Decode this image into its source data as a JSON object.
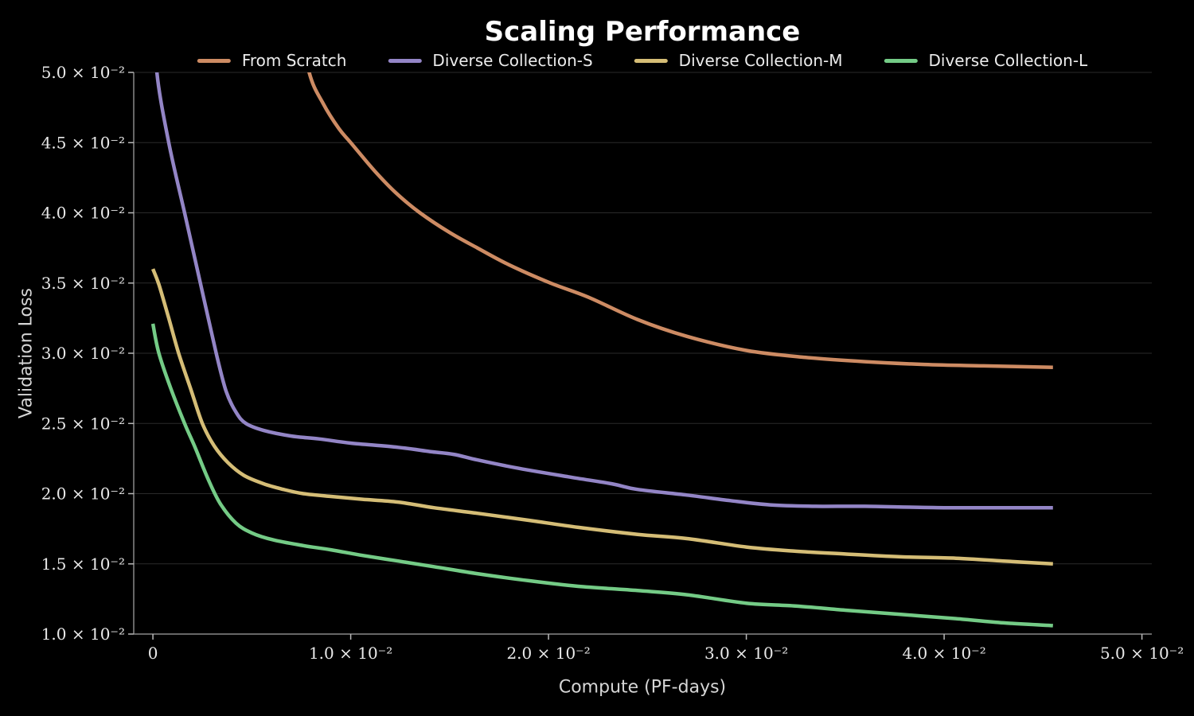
{
  "chart_data": {
    "type": "line",
    "title": "Scaling Performance",
    "xlabel": "Compute (PF-days)",
    "ylabel": "Validation Loss",
    "xlim": [
      -0.00097,
      0.0505
    ],
    "ylim": [
      0.01,
      0.05
    ],
    "grid": "horizontal",
    "legend_position": "top-center",
    "colors": {
      "background": "#000000",
      "gridline": "#2a2a2a",
      "spine": "#878787",
      "tick": "#b8b8b8",
      "tick_label": "#e9e9e9",
      "axis_label": "#d6d6d6",
      "title": "#ffffff",
      "legend_text": "#ececec"
    },
    "xticks": [
      {
        "v": 0,
        "label": "0"
      },
      {
        "v": 0.01,
        "label": "1.0 × 10⁻²"
      },
      {
        "v": 0.02,
        "label": "2.0 × 10⁻²"
      },
      {
        "v": 0.03,
        "label": "3.0 × 10⁻²"
      },
      {
        "v": 0.04,
        "label": "4.0 × 10⁻²"
      },
      {
        "v": 0.05,
        "label": "5.0 × 10⁻²"
      }
    ],
    "yticks": [
      {
        "v": 0.05,
        "label": "5.0 × 10⁻²"
      },
      {
        "v": 0.045,
        "label": "4.5 × 10⁻²"
      },
      {
        "v": 0.04,
        "label": "4.0 × 10⁻²"
      },
      {
        "v": 0.035,
        "label": "3.5 × 10⁻²"
      },
      {
        "v": 0.03,
        "label": "3.0 × 10⁻²"
      },
      {
        "v": 0.025,
        "label": "2.5 × 10⁻²"
      },
      {
        "v": 0.02,
        "label": "2.0 × 10⁻²"
      },
      {
        "v": 0.015,
        "label": "1.5 × 10⁻²"
      },
      {
        "v": 0.01,
        "label": "1.0 × 10⁻²"
      }
    ],
    "line_width": 4.5,
    "series": [
      {
        "name": "From Scratch",
        "color": "#cd8b63",
        "points": [
          [
            0.0072,
            0.055
          ],
          [
            0.0079,
            0.05
          ],
          [
            0.0086,
            0.0478
          ],
          [
            0.0094,
            0.046
          ],
          [
            0.01,
            0.045
          ],
          [
            0.0112,
            0.043
          ],
          [
            0.0123,
            0.0414
          ],
          [
            0.0135,
            0.04
          ],
          [
            0.015,
            0.0386
          ],
          [
            0.0164,
            0.0375
          ],
          [
            0.018,
            0.0363
          ],
          [
            0.0201,
            0.035
          ],
          [
            0.022,
            0.034
          ],
          [
            0.0245,
            0.0324
          ],
          [
            0.027,
            0.0312
          ],
          [
            0.03,
            0.0302
          ],
          [
            0.033,
            0.0297
          ],
          [
            0.036,
            0.0294
          ],
          [
            0.039,
            0.0292
          ],
          [
            0.042,
            0.0291
          ],
          [
            0.0455,
            0.029
          ]
        ]
      },
      {
        "name": "Diverse Collection-S",
        "color": "#9385c6",
        "points": [
          [
            0.00012,
            0.0545
          ],
          [
            0.0002,
            0.05
          ],
          [
            0.0008,
            0.045
          ],
          [
            0.0016,
            0.04
          ],
          [
            0.0024,
            0.035
          ],
          [
            0.0032,
            0.03
          ],
          [
            0.0037,
            0.0273
          ],
          [
            0.0042,
            0.0258
          ],
          [
            0.0047,
            0.025
          ],
          [
            0.0056,
            0.0245
          ],
          [
            0.007,
            0.0241
          ],
          [
            0.0084,
            0.0239
          ],
          [
            0.01,
            0.0236
          ],
          [
            0.0124,
            0.0233
          ],
          [
            0.014,
            0.023
          ],
          [
            0.0152,
            0.0228
          ],
          [
            0.0164,
            0.0224
          ],
          [
            0.0185,
            0.0218
          ],
          [
            0.021,
            0.0212
          ],
          [
            0.0232,
            0.0207
          ],
          [
            0.0245,
            0.0203
          ],
          [
            0.027,
            0.0199
          ],
          [
            0.0292,
            0.0195
          ],
          [
            0.0312,
            0.0192
          ],
          [
            0.0335,
            0.0191
          ],
          [
            0.036,
            0.0191
          ],
          [
            0.04,
            0.019
          ],
          [
            0.0455,
            0.019
          ]
        ]
      },
      {
        "name": "Diverse Collection-M",
        "color": "#d5bd76",
        "points": [
          [
            0.0,
            0.036
          ],
          [
            0.0003,
            0.0349
          ],
          [
            0.0008,
            0.0325
          ],
          [
            0.0013,
            0.03
          ],
          [
            0.0019,
            0.0275
          ],
          [
            0.0025,
            0.025
          ],
          [
            0.0031,
            0.0234
          ],
          [
            0.0038,
            0.0222
          ],
          [
            0.0046,
            0.0213
          ],
          [
            0.0056,
            0.0207
          ],
          [
            0.0066,
            0.0203
          ],
          [
            0.0076,
            0.02
          ],
          [
            0.009,
            0.0198
          ],
          [
            0.0106,
            0.0196
          ],
          [
            0.0124,
            0.0194
          ],
          [
            0.0142,
            0.019
          ],
          [
            0.0164,
            0.0186
          ],
          [
            0.019,
            0.0181
          ],
          [
            0.0215,
            0.0176
          ],
          [
            0.0245,
            0.0171
          ],
          [
            0.027,
            0.0168
          ],
          [
            0.03,
            0.0162
          ],
          [
            0.0325,
            0.0159
          ],
          [
            0.035,
            0.0157
          ],
          [
            0.0378,
            0.0155
          ],
          [
            0.0406,
            0.0154
          ],
          [
            0.043,
            0.0152
          ],
          [
            0.0455,
            0.015
          ]
        ]
      },
      {
        "name": "Diverse Collection-L",
        "color": "#74cb86",
        "points": [
          [
            0.0,
            0.0321
          ],
          [
            0.0003,
            0.03
          ],
          [
            0.0009,
            0.0275
          ],
          [
            0.0016,
            0.025
          ],
          [
            0.0021,
            0.0234
          ],
          [
            0.0028,
            0.021
          ],
          [
            0.0034,
            0.0193
          ],
          [
            0.0042,
            0.0179
          ],
          [
            0.005,
            0.0172
          ],
          [
            0.0061,
            0.0167
          ],
          [
            0.0076,
            0.0163
          ],
          [
            0.009,
            0.016
          ],
          [
            0.0106,
            0.0156
          ],
          [
            0.0124,
            0.0152
          ],
          [
            0.0142,
            0.0148
          ],
          [
            0.0164,
            0.0143
          ],
          [
            0.019,
            0.0138
          ],
          [
            0.0215,
            0.0134
          ],
          [
            0.0245,
            0.0131
          ],
          [
            0.027,
            0.0128
          ],
          [
            0.03,
            0.0122
          ],
          [
            0.0325,
            0.012
          ],
          [
            0.035,
            0.0117
          ],
          [
            0.0378,
            0.0114
          ],
          [
            0.0406,
            0.0111
          ],
          [
            0.043,
            0.0108
          ],
          [
            0.0455,
            0.0106
          ]
        ]
      }
    ]
  }
}
